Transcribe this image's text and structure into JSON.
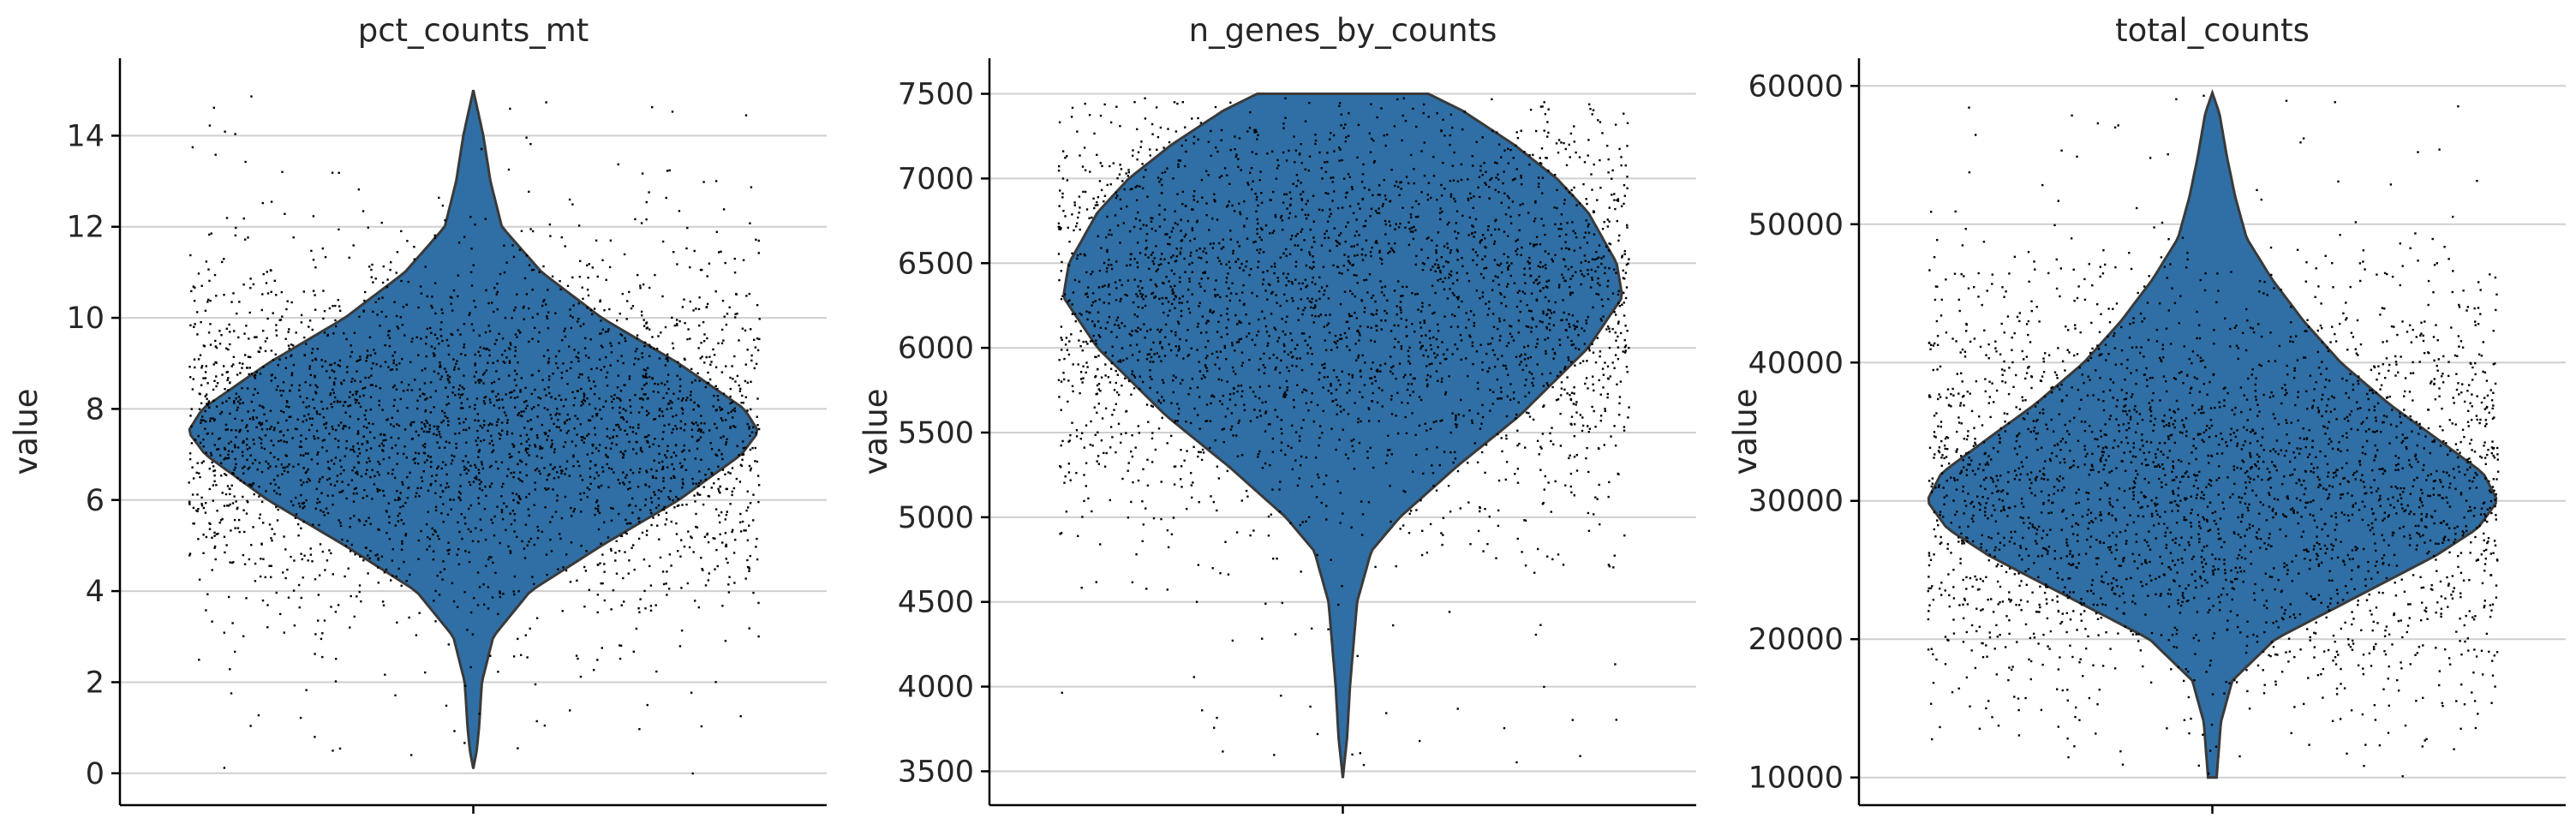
{
  "chart_data": [
    {
      "type": "violin",
      "title": "pct_counts_mt",
      "ylabel": "value",
      "xlabel": "",
      "ylim": [
        -0.7,
        15.7
      ],
      "yticks": [
        0,
        2,
        4,
        6,
        8,
        10,
        12,
        14
      ],
      "grid": "y",
      "color": "#2f6fa5",
      "violin_profile": [
        [
          0.1,
          0.0
        ],
        [
          0.5,
          0.012
        ],
        [
          1.0,
          0.02
        ],
        [
          2.0,
          0.03
        ],
        [
          3.0,
          0.07
        ],
        [
          4.0,
          0.2
        ],
        [
          5.0,
          0.45
        ],
        [
          6.0,
          0.72
        ],
        [
          7.0,
          0.94
        ],
        [
          7.5,
          1.0
        ],
        [
          8.0,
          0.95
        ],
        [
          9.0,
          0.72
        ],
        [
          10.0,
          0.45
        ],
        [
          11.0,
          0.24
        ],
        [
          12.0,
          0.1
        ],
        [
          13.0,
          0.06
        ],
        [
          14.0,
          0.035
        ],
        [
          15.0,
          0.0
        ]
      ],
      "points": {
        "count": 3000,
        "center": 7.6,
        "spread": 1.9,
        "min": 0.0,
        "max": 15.0,
        "color": "#000000"
      }
    },
    {
      "type": "violin",
      "title": "n_genes_by_counts",
      "ylabel": "value",
      "xlabel": "",
      "ylim": [
        3300,
        7710
      ],
      "yticks": [
        3500,
        4000,
        4500,
        5000,
        5500,
        6000,
        6500,
        7000,
        7500
      ],
      "grid": "y",
      "color": "#2f6fa5",
      "violin_profile": [
        [
          3460,
          0.0
        ],
        [
          3700,
          0.015
        ],
        [
          4000,
          0.025
        ],
        [
          4300,
          0.04
        ],
        [
          4500,
          0.05
        ],
        [
          4800,
          0.1
        ],
        [
          5000,
          0.2
        ],
        [
          5300,
          0.4
        ],
        [
          5600,
          0.62
        ],
        [
          6000,
          0.86
        ],
        [
          6300,
          0.98
        ],
        [
          6500,
          0.96
        ],
        [
          6800,
          0.86
        ],
        [
          7000,
          0.75
        ],
        [
          7200,
          0.6
        ],
        [
          7400,
          0.42
        ],
        [
          7500,
          0.3
        ]
      ],
      "points": {
        "count": 3000,
        "center": 6300,
        "spread": 620,
        "min": 3500,
        "max": 7480,
        "color": "#000000"
      }
    },
    {
      "type": "violin",
      "title": "total_counts",
      "ylabel": "value",
      "xlabel": "",
      "ylim": [
        8000,
        62000
      ],
      "yticks": [
        10000,
        20000,
        30000,
        40000,
        50000,
        60000
      ],
      "grid": "y",
      "color": "#2f6fa5",
      "violin_profile": [
        [
          10000,
          0.015
        ],
        [
          14000,
          0.03
        ],
        [
          17000,
          0.07
        ],
        [
          20000,
          0.22
        ],
        [
          23000,
          0.5
        ],
        [
          26000,
          0.78
        ],
        [
          28000,
          0.93
        ],
        [
          30000,
          1.0
        ],
        [
          32000,
          0.95
        ],
        [
          34000,
          0.82
        ],
        [
          37000,
          0.62
        ],
        [
          40000,
          0.45
        ],
        [
          43000,
          0.32
        ],
        [
          46000,
          0.21
        ],
        [
          49000,
          0.12
        ],
        [
          52000,
          0.08
        ],
        [
          55000,
          0.05
        ],
        [
          58000,
          0.025
        ],
        [
          59500,
          0.0
        ]
      ],
      "points": {
        "count": 3000,
        "center": 31000,
        "spread": 7500,
        "min": 10000,
        "max": 59500,
        "color": "#000000"
      }
    }
  ]
}
